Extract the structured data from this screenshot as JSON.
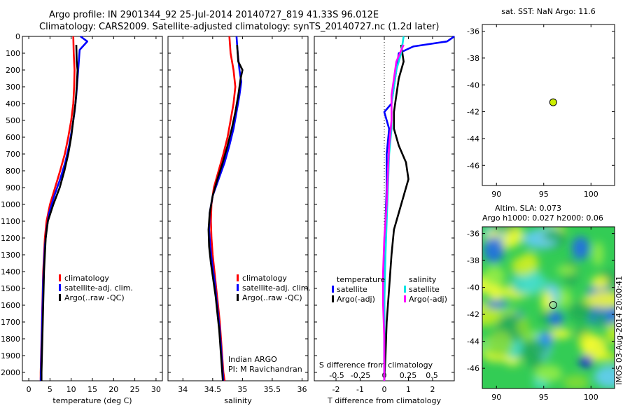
{
  "header": {
    "line1": "Argo profile: IN 2901344_92 25-Jul-2014 20140727_819 41.33S 96.012E",
    "line2": "Climatology: CARS2009. Satellite-adjusted climatology: synTS_20140727.nc (1.2d later)"
  },
  "stamp": "IMOS 03-Aug-2014 20:00:41",
  "colors": {
    "clim": "#ff0000",
    "sat": "#0000ff",
    "argo": "#000000",
    "cyan": "#00e5e5",
    "magenta": "#ff00ff",
    "marker": "#ccee00"
  },
  "chart_data": [
    {
      "type": "line",
      "xlabel": "temperature (deg C)",
      "ylim": [
        2050,
        0
      ],
      "xlim": [
        -1.5,
        31.5
      ],
      "xticks": [
        0,
        5,
        10,
        15,
        20,
        25,
        30
      ],
      "yticks": [
        0,
        100,
        200,
        300,
        400,
        500,
        600,
        700,
        800,
        900,
        1000,
        1100,
        1200,
        1300,
        1400,
        1500,
        1600,
        1700,
        1800,
        1900,
        2000
      ],
      "legend": [
        "climatology",
        "satellite-adj. clim.",
        "Argo(..raw -QC)"
      ],
      "series": [
        {
          "name": "climatology",
          "color": "#ff0000",
          "points": [
            [
              10.5,
              0
            ],
            [
              10.6,
              100
            ],
            [
              10.8,
              200
            ],
            [
              10.7,
              300
            ],
            [
              10.5,
              400
            ],
            [
              10.0,
              500
            ],
            [
              9.3,
              600
            ],
            [
              8.5,
              700
            ],
            [
              7.4,
              800
            ],
            [
              6.2,
              900
            ],
            [
              5.0,
              1000
            ],
            [
              4.2,
              1100
            ],
            [
              3.8,
              1200
            ],
            [
              3.6,
              1300
            ],
            [
              3.4,
              1400
            ],
            [
              3.3,
              1500
            ],
            [
              3.2,
              1600
            ],
            [
              3.1,
              1700
            ],
            [
              3.0,
              1800
            ],
            [
              2.9,
              1900
            ],
            [
              2.8,
              2000
            ],
            [
              2.8,
              2050
            ]
          ]
        },
        {
          "name": "satellite-adj. clim.",
          "color": "#0000ff",
          "points": [
            [
              12.2,
              0
            ],
            [
              13.8,
              30
            ],
            [
              12.0,
              80
            ],
            [
              11.8,
              150
            ],
            [
              11.5,
              250
            ],
            [
              11.2,
              350
            ],
            [
              10.8,
              450
            ],
            [
              10.2,
              550
            ],
            [
              9.5,
              650
            ],
            [
              8.6,
              750
            ],
            [
              7.4,
              850
            ],
            [
              6.0,
              950
            ],
            [
              4.8,
              1050
            ],
            [
              4.2,
              1150
            ],
            [
              3.8,
              1250
            ],
            [
              3.6,
              1350
            ],
            [
              3.4,
              1450
            ],
            [
              3.3,
              1550
            ],
            [
              3.2,
              1650
            ],
            [
              3.1,
              1750
            ],
            [
              3.0,
              1850
            ],
            [
              2.9,
              1950
            ],
            [
              2.8,
              2050
            ]
          ]
        },
        {
          "name": "Argo(..raw -QC)",
          "color": "#000000",
          "points": [
            [
              11.2,
              50
            ],
            [
              11.3,
              150
            ],
            [
              11.5,
              200
            ],
            [
              11.3,
              300
            ],
            [
              11.0,
              400
            ],
            [
              10.5,
              500
            ],
            [
              10.0,
              600
            ],
            [
              9.3,
              700
            ],
            [
              8.4,
              800
            ],
            [
              7.3,
              900
            ],
            [
              5.8,
              1000
            ],
            [
              4.5,
              1100
            ],
            [
              4.0,
              1200
            ],
            [
              3.8,
              1300
            ],
            [
              3.6,
              1400
            ],
            [
              3.5,
              1500
            ],
            [
              3.4,
              1600
            ],
            [
              3.3,
              1700
            ],
            [
              3.2,
              1800
            ],
            [
              3.1,
              1900
            ],
            [
              3.0,
              2000
            ],
            [
              3.0,
              2050
            ]
          ]
        }
      ]
    },
    {
      "type": "line",
      "xlabel": "salinity",
      "ylim": [
        2050,
        0
      ],
      "xlim": [
        33.75,
        36.1
      ],
      "xticks": [
        34,
        34.5,
        35,
        35.5,
        36
      ],
      "legend": [
        "climatology",
        "satellite-adj. clim.",
        "Argo(..raw -QC)"
      ],
      "annotation": [
        "Indian ARGO",
        "PI: M Ravichandran"
      ],
      "series": [
        {
          "name": "climatology",
          "color": "#ff0000",
          "points": [
            [
              34.78,
              0
            ],
            [
              34.8,
              100
            ],
            [
              34.85,
              200
            ],
            [
              34.88,
              300
            ],
            [
              34.85,
              400
            ],
            [
              34.8,
              500
            ],
            [
              34.75,
              600
            ],
            [
              34.68,
              700
            ],
            [
              34.6,
              800
            ],
            [
              34.52,
              900
            ],
            [
              34.48,
              1000
            ],
            [
              34.47,
              1100
            ],
            [
              34.48,
              1200
            ],
            [
              34.5,
              1300
            ],
            [
              34.53,
              1400
            ],
            [
              34.56,
              1500
            ],
            [
              34.59,
              1600
            ],
            [
              34.62,
              1700
            ],
            [
              34.64,
              1800
            ],
            [
              34.66,
              1900
            ],
            [
              34.68,
              2000
            ],
            [
              34.7,
              2050
            ]
          ]
        },
        {
          "name": "satellite-adj. clim.",
          "color": "#0000ff",
          "points": [
            [
              34.9,
              0
            ],
            [
              34.92,
              100
            ],
            [
              34.95,
              200
            ],
            [
              34.98,
              270
            ],
            [
              34.95,
              350
            ],
            [
              34.9,
              450
            ],
            [
              34.85,
              550
            ],
            [
              34.78,
              650
            ],
            [
              34.7,
              750
            ],
            [
              34.6,
              850
            ],
            [
              34.5,
              950
            ],
            [
              34.45,
              1050
            ],
            [
              34.44,
              1150
            ],
            [
              34.46,
              1250
            ],
            [
              34.49,
              1350
            ],
            [
              34.53,
              1450
            ],
            [
              34.56,
              1550
            ],
            [
              34.59,
              1650
            ],
            [
              34.62,
              1750
            ],
            [
              34.64,
              1850
            ],
            [
              34.66,
              1950
            ],
            [
              34.68,
              2050
            ]
          ]
        },
        {
          "name": "Argo(..raw -QC)",
          "color": "#000000",
          "points": [
            [
              34.91,
              50
            ],
            [
              34.93,
              150
            ],
            [
              35.0,
              200
            ],
            [
              34.97,
              250
            ],
            [
              34.93,
              350
            ],
            [
              34.88,
              450
            ],
            [
              34.82,
              550
            ],
            [
              34.75,
              650
            ],
            [
              34.67,
              750
            ],
            [
              34.58,
              850
            ],
            [
              34.5,
              950
            ],
            [
              34.45,
              1050
            ],
            [
              34.43,
              1150
            ],
            [
              34.44,
              1250
            ],
            [
              34.47,
              1350
            ],
            [
              34.51,
              1450
            ],
            [
              34.55,
              1550
            ],
            [
              34.58,
              1650
            ],
            [
              34.61,
              1750
            ],
            [
              34.63,
              1850
            ],
            [
              34.65,
              1950
            ],
            [
              34.67,
              2050
            ]
          ]
        }
      ]
    },
    {
      "type": "line",
      "xlabel": "T difference from climatology",
      "xlabel_top": "S difference from climatology",
      "ylim": [
        2050,
        0
      ],
      "xlim": [
        -2.9,
        2.9
      ],
      "xticks": [
        -2,
        -1,
        0,
        1,
        2
      ],
      "xticks_top": [
        -0.5,
        -0.25,
        0,
        0.25,
        0.5
      ],
      "legend_title_left": "temperature",
      "legend_title_right": "salinity",
      "legend": [
        "satellite",
        "Argo(-adj)",
        "satellite",
        "Argo(-adj)"
      ],
      "series": [
        {
          "name": "satellite",
          "color": "#0000ff",
          "points": [
            [
              2.9,
              0
            ],
            [
              2.6,
              30
            ],
            [
              1.2,
              60
            ],
            [
              0.6,
              100
            ],
            [
              0.5,
              200
            ],
            [
              0.4,
              300
            ],
            [
              0.3,
              400
            ],
            [
              0,
              450
            ],
            [
              0.2,
              550
            ],
            [
              0.1,
              700
            ],
            [
              0.1,
              900
            ],
            [
              0.05,
              1100
            ],
            [
              0.0,
              1300
            ],
            [
              0.0,
              1600
            ],
            [
              0.0,
              1900
            ],
            [
              0.0,
              2050
            ]
          ]
        },
        {
          "name": "Argo(-adj)",
          "color": "#000000",
          "points": [
            [
              0.7,
              50
            ],
            [
              0.8,
              150
            ],
            [
              0.6,
              250
            ],
            [
              0.5,
              350
            ],
            [
              0.4,
              450
            ],
            [
              0.4,
              550
            ],
            [
              0.6,
              650
            ],
            [
              0.9,
              750
            ],
            [
              1.0,
              850
            ],
            [
              0.8,
              950
            ],
            [
              0.6,
              1050
            ],
            [
              0.4,
              1150
            ],
            [
              0.3,
              1300
            ],
            [
              0.2,
              1500
            ],
            [
              0.1,
              1700
            ],
            [
              0.05,
              1900
            ],
            [
              0.0,
              2050
            ]
          ]
        },
        {
          "name": "satellite",
          "color": "#00e5e5",
          "points": [
            [
              0.8,
              0
            ],
            [
              0.7,
              100
            ],
            [
              0.5,
              200
            ],
            [
              0.4,
              300
            ],
            [
              0.3,
              400
            ],
            [
              0.3,
              550
            ],
            [
              0.2,
              700
            ],
            [
              0.15,
              900
            ],
            [
              0.1,
              1100
            ],
            [
              0.05,
              1300
            ],
            [
              0.0,
              1600
            ],
            [
              0.0,
              1900
            ],
            [
              0.0,
              2050
            ]
          ]
        },
        {
          "name": "Argo(-adj)",
          "color": "#ff00ff",
          "points": [
            [
              0.8,
              50
            ],
            [
              0.5,
              150
            ],
            [
              0.4,
              250
            ],
            [
              0.3,
              350
            ],
            [
              0.3,
              500
            ],
            [
              0.2,
              650
            ],
            [
              0.15,
              800
            ],
            [
              0.1,
              1000
            ],
            [
              0.0,
              1200
            ],
            [
              -0.05,
              1400
            ],
            [
              -0.05,
              1600
            ],
            [
              0.0,
              1800
            ],
            [
              0.0,
              2050
            ]
          ]
        }
      ]
    },
    {
      "type": "scatter",
      "title": "sat. SST: NaN Argo: 11.6",
      "xlim": [
        88.5,
        102.5
      ],
      "ylim": [
        -47.5,
        -35.5
      ],
      "xticks": [
        90,
        95,
        100
      ],
      "yticks": [
        -36,
        -38,
        -40,
        -42,
        -44,
        -46
      ],
      "points": [
        [
          96.0,
          -41.3
        ]
      ]
    },
    {
      "type": "heatmap",
      "title": [
        "Altim. SLA: 0.073",
        "Argo h1000: 0.027 h2000: 0.06"
      ],
      "xlim": [
        88.5,
        102.5
      ],
      "ylim": [
        -47.5,
        -35.5
      ],
      "xticks": [
        90,
        95,
        100
      ],
      "yticks": [
        -36,
        -38,
        -40,
        -42,
        -44,
        -46
      ],
      "points": [
        [
          96.0,
          -41.3
        ]
      ]
    }
  ]
}
